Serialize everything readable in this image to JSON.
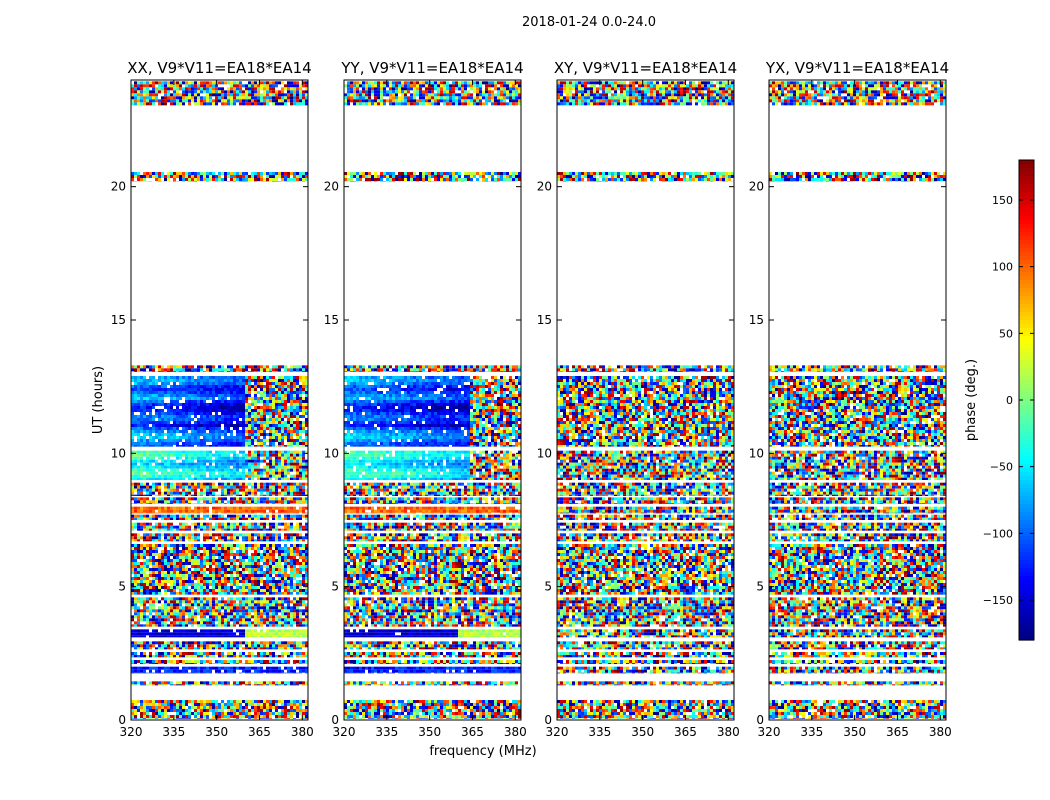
{
  "chart_data": {
    "type": "heatmap",
    "title": "2018-01-24 0.0-24.0",
    "xlabel": "frequency (MHz)",
    "ylabel": "UT (hours)",
    "xlim": [
      320,
      382
    ],
    "ylim": [
      0,
      24
    ],
    "xticks": [
      320,
      335,
      350,
      365,
      380
    ],
    "yticks": [
      0,
      5,
      10,
      15,
      20
    ],
    "panels": [
      {
        "title": "XX, V9*V11=EA18*EA14",
        "pattern": "parallel",
        "edge_mhz": 360
      },
      {
        "title": "YY, V9*V11=EA18*EA14",
        "pattern": "parallel",
        "edge_mhz": 364
      },
      {
        "title": "XY, V9*V11=EA18*EA14",
        "pattern": "cross"
      },
      {
        "title": "YX, V9*V11=EA18*EA14",
        "pattern": "cross"
      }
    ],
    "colorbar": {
      "label": "phase (deg.)",
      "range": [
        -180,
        180
      ],
      "ticks": [
        150,
        100,
        50,
        0,
        -50,
        -100,
        -150
      ],
      "colormap": "jet"
    },
    "data_rows_ut": [
      [
        0.05,
        0.75
      ],
      [
        1.3,
        1.45
      ],
      [
        1.75,
        2.0
      ],
      [
        2.1,
        2.25
      ],
      [
        2.35,
        2.55
      ],
      [
        2.65,
        2.95
      ],
      [
        3.1,
        3.4
      ],
      [
        3.5,
        4.6
      ],
      [
        4.7,
        6.6
      ],
      [
        6.7,
        7.0
      ],
      [
        7.1,
        7.4
      ],
      [
        7.5,
        7.7
      ],
      [
        7.75,
        8.0
      ],
      [
        8.1,
        8.35
      ],
      [
        8.4,
        8.9
      ],
      [
        9.0,
        10.1
      ],
      [
        10.25,
        12.9
      ],
      [
        13.05,
        13.3
      ],
      [
        20.2,
        20.55
      ],
      [
        23.05,
        23.95
      ]
    ]
  }
}
